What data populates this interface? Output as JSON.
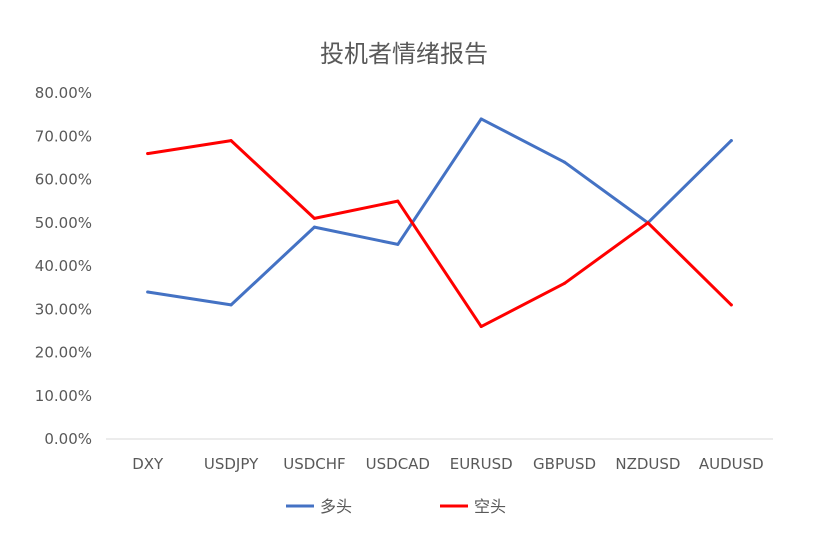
{
  "chart_data": {
    "type": "line",
    "title": "投机者情绪报告",
    "xlabel": "",
    "ylabel": "",
    "categories": [
      "DXY",
      "USDJPY",
      "USDCHF",
      "USDCAD",
      "EURUSD",
      "GBPUSD",
      "NZDUSD",
      "AUDUSD"
    ],
    "ylim": [
      0,
      80
    ],
    "yticks": [
      0,
      10,
      20,
      30,
      40,
      50,
      60,
      70,
      80
    ],
    "ytick_labels": [
      "0.00%",
      "10.00%",
      "20.00%",
      "30.00%",
      "40.00%",
      "50.00%",
      "60.00%",
      "70.00%",
      "80.00%"
    ],
    "grid": false,
    "legend": "bottom",
    "series": [
      {
        "name": "多头",
        "color": "#4472C4",
        "values": [
          34,
          31,
          49,
          45,
          74,
          64,
          50,
          69
        ]
      },
      {
        "name": "空头",
        "color": "#FF0000",
        "values": [
          66,
          69,
          51,
          55,
          26,
          36,
          50,
          31
        ]
      }
    ]
  }
}
